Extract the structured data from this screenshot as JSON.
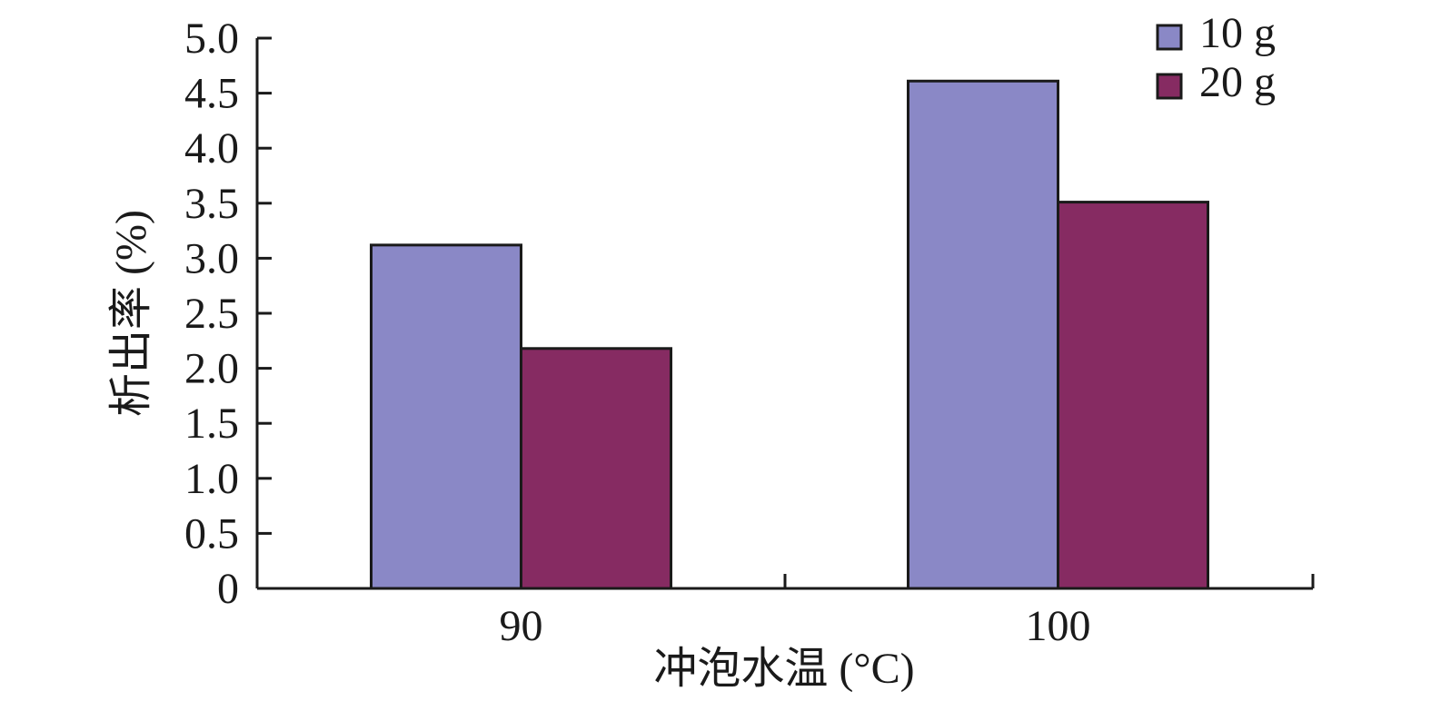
{
  "chart_data": {
    "type": "bar",
    "title": "",
    "xlabel": "冲泡水温 (°C)",
    "ylabel": "析出率 (%)",
    "categories": [
      "90",
      "100"
    ],
    "ylim": [
      0,
      5.0
    ],
    "yticks": [
      "0",
      "0.5",
      "1.0",
      "1.5",
      "2.0",
      "2.5",
      "3.0",
      "3.5",
      "4.0",
      "4.5",
      "5.0"
    ],
    "series": [
      {
        "name": "10 g",
        "color": "#8a88c6",
        "values": [
          3.12,
          4.61
        ]
      },
      {
        "name": "20 g",
        "color": "#862b62",
        "values": [
          2.18,
          3.51
        ]
      }
    ],
    "legend_position": "top-right",
    "grid": false
  }
}
